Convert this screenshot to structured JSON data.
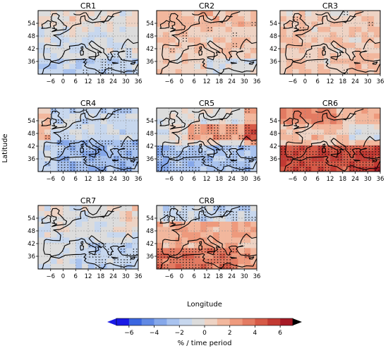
{
  "figure": {
    "y_axis_title": "Latitude",
    "x_axis_title": "Longitude",
    "colorbar_label": "% / time period"
  },
  "chart_data": {
    "type": "heatmap",
    "panels": [
      "CR1",
      "CR2",
      "CR3",
      "CR4",
      "CR5",
      "CR6",
      "CR7",
      "CR8"
    ],
    "x_range_deg": [
      -12,
      36
    ],
    "y_range_deg": [
      30,
      60
    ],
    "x_ticks": [
      "−6",
      "0",
      "6",
      "12",
      "18",
      "24",
      "30",
      "36"
    ],
    "x_tick_values": [
      -6,
      0,
      6,
      12,
      18,
      24,
      30,
      36
    ],
    "y_ticks": [
      "54",
      "48",
      "42",
      "36"
    ],
    "y_tick_values": [
      54,
      48,
      42,
      36
    ],
    "gridlines": true,
    "colorbar": {
      "ticks": [
        "−6",
        "−4",
        "−2",
        "0",
        "2",
        "4",
        "6"
      ],
      "tick_values": [
        -6,
        -4,
        -2,
        0,
        2,
        4,
        6
      ],
      "range": [
        -7,
        7
      ],
      "extend": "both",
      "colors": [
        "#1a1ae6",
        "#3b66e0",
        "#6189e4",
        "#86a8ea",
        "#a9c3ef",
        "#c7d7ee",
        "#dcdcdc",
        "#eed3c4",
        "#f2b79d",
        "#ee9a7d",
        "#e37b62",
        "#d65a47",
        "#c23a33",
        "#a51a25",
        "#7a0010",
        "#000000"
      ]
    },
    "dominant_signal": {
      "CR1": "weak negative",
      "CR2": "weak positive",
      "CR3": "weak positive",
      "CR4": "negative",
      "CR5": "negative south, positive north",
      "CR6": "strong positive south",
      "CR7": "weak negative",
      "CR8": "positive"
    }
  }
}
